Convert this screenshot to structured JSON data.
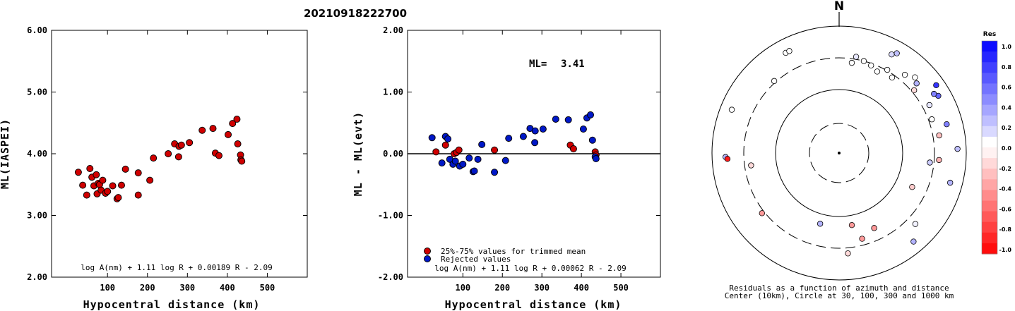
{
  "event_id": "20210918222700",
  "chart_data": [
    {
      "type": "scatter",
      "panel": "ml-vs-distance",
      "title": "20210918222700",
      "xlabel": "Hypocentral distance (km)",
      "ylabel": "ML(IASPEI)",
      "xlim": [
        -40,
        600
      ],
      "ylim": [
        2.0,
        6.0
      ],
      "x_ticks": [
        "100",
        "200",
        "300",
        "400",
        "500"
      ],
      "x_tick_values": [
        100,
        200,
        300,
        400,
        500
      ],
      "y_ticks": [
        "2.00",
        "3.00",
        "4.00",
        "5.00",
        "6.00"
      ],
      "y_tick_values": [
        2,
        3,
        4,
        5,
        6
      ],
      "formula": "log A(nm) + 1.11 log R + 0.00189 R - 2.09",
      "marker_color": "#d00000",
      "points": [
        [
          27,
          3.7
        ],
        [
          38,
          3.49
        ],
        [
          48,
          3.33
        ],
        [
          56,
          3.76
        ],
        [
          61,
          3.62
        ],
        [
          66,
          3.48
        ],
        [
          72,
          3.66
        ],
        [
          74,
          3.35
        ],
        [
          77,
          3.52
        ],
        [
          80,
          3.5
        ],
        [
          84,
          3.41
        ],
        [
          88,
          3.57
        ],
        [
          95,
          3.36
        ],
        [
          100,
          3.39
        ],
        [
          113,
          3.48
        ],
        [
          124,
          3.27
        ],
        [
          127,
          3.29
        ],
        [
          135,
          3.49
        ],
        [
          145,
          3.75
        ],
        [
          177,
          3.69
        ],
        [
          177,
          3.33
        ],
        [
          206,
          3.57
        ],
        [
          215,
          3.93
        ],
        [
          252,
          4.0
        ],
        [
          268,
          4.16
        ],
        [
          278,
          3.95
        ],
        [
          279,
          4.12
        ],
        [
          285,
          4.14
        ],
        [
          305,
          4.18
        ],
        [
          337,
          4.38
        ],
        [
          364,
          4.41
        ],
        [
          370,
          4.01
        ],
        [
          379,
          3.97
        ],
        [
          402,
          4.31
        ],
        [
          413,
          4.49
        ],
        [
          424,
          4.56
        ],
        [
          426,
          4.16
        ],
        [
          433,
          3.98
        ],
        [
          434,
          3.9
        ],
        [
          436,
          3.88
        ]
      ]
    },
    {
      "type": "scatter",
      "panel": "residual-vs-distance",
      "xlabel": "Hypocentral distance (km)",
      "ylabel": "ML - ML(evt)",
      "xlim": [
        -40,
        600
      ],
      "ylim": [
        -2.0,
        2.0
      ],
      "x_ticks": [
        "100",
        "200",
        "300",
        "400",
        "500"
      ],
      "x_tick_values": [
        100,
        200,
        300,
        400,
        500
      ],
      "y_ticks": [
        "-2.00",
        "-1.00",
        "0.00",
        "1.00",
        "2.00"
      ],
      "y_tick_values": [
        -2,
        -1,
        0,
        1,
        2
      ],
      "ml_label": "ML=",
      "ml_value": "3.41",
      "formula": "log A(nm) + 1.11 log R + 0.00062 R - 2.09",
      "zero_line": true,
      "legend": [
        {
          "label": "25%-75% values for trimmed mean",
          "color": "#d00000"
        },
        {
          "label": "Rejected values",
          "color": "#0018c8"
        }
      ],
      "series": [
        {
          "name": "25%-75% values for trimmed mean",
          "color": "#d00000",
          "points": [
            [
              32,
              0.03
            ],
            [
              56,
              0.14
            ],
            [
              78,
              0.0
            ],
            [
              84,
              0.02
            ],
            [
              90,
              0.06
            ],
            [
              180,
              0.06
            ],
            [
              372,
              0.14
            ],
            [
              380,
              0.08
            ],
            [
              435,
              0.03
            ],
            [
              437,
              -0.02
            ]
          ]
        },
        {
          "name": "Rejected values",
          "color": "#0018c8",
          "points": [
            [
              22,
              0.26
            ],
            [
              47,
              -0.15
            ],
            [
              56,
              0.28
            ],
            [
              62,
              0.24
            ],
            [
              67,
              -0.09
            ],
            [
              75,
              -0.17
            ],
            [
              81,
              -0.12
            ],
            [
              92,
              -0.2
            ],
            [
              100,
              -0.17
            ],
            [
              116,
              -0.07
            ],
            [
              126,
              -0.29
            ],
            [
              129,
              -0.28
            ],
            [
              138,
              -0.09
            ],
            [
              148,
              0.15
            ],
            [
              180,
              -0.3
            ],
            [
              208,
              -0.11
            ],
            [
              216,
              0.25
            ],
            [
              253,
              0.28
            ],
            [
              270,
              0.41
            ],
            [
              282,
              0.18
            ],
            [
              283,
              0.37
            ],
            [
              303,
              0.4
            ],
            [
              335,
              0.56
            ],
            [
              367,
              0.55
            ],
            [
              405,
              0.4
            ],
            [
              414,
              0.58
            ],
            [
              423,
              0.63
            ],
            [
              428,
              0.22
            ],
            [
              435,
              -0.05
            ],
            [
              437,
              -0.08
            ]
          ]
        }
      ]
    },
    {
      "type": "scatter",
      "panel": "azimuth-distance-residuals",
      "north_label": "N",
      "caption_line1": "Residuals as a function of azimuth and distance",
      "caption_line2": "Center (10km), Circle at 30, 100, 300 and 1000 km",
      "rings_km": [
        30,
        100,
        300,
        1000
      ],
      "colorbar_title": "Res",
      "colorbar_labels": [
        "1.0",
        "0.8",
        "0.6",
        "0.4",
        "0.2",
        "0.0",
        "-0.2",
        "-0.4",
        "-0.6",
        "-0.8",
        "-1.0"
      ],
      "stations": [
        {
          "az": 332,
          "dist_km": 600,
          "res": 0.0
        },
        {
          "az": 334,
          "dist_km": 600,
          "res": 0.0
        },
        {
          "az": 30,
          "dist_km": 640,
          "res": 0.25
        },
        {
          "az": 28,
          "dist_km": 560,
          "res": 0.15
        },
        {
          "az": 318,
          "dist_km": 320,
          "res": 0.0
        },
        {
          "az": 292,
          "dist_km": 650,
          "res": 0.0
        },
        {
          "az": 268,
          "dist_km": 600,
          "res": 0.3
        },
        {
          "az": 267,
          "dist_km": 560,
          "res": -0.9
        },
        {
          "az": 262,
          "dist_km": 240,
          "res": -0.15
        },
        {
          "az": 232,
          "dist_km": 330,
          "res": -0.4
        },
        {
          "az": 195,
          "dist_km": 140,
          "res": 0.3
        },
        {
          "az": 170,
          "dist_km": 140,
          "res": -0.4
        },
        {
          "az": 175,
          "dist_km": 370,
          "res": -0.15
        },
        {
          "az": 165,
          "dist_km": 240,
          "res": -0.4
        },
        {
          "az": 155,
          "dist_km": 195,
          "res": -0.4
        },
        {
          "az": 133,
          "dist_km": 420,
          "res": 0.05
        },
        {
          "az": 140,
          "dist_km": 650,
          "res": 0.3
        },
        {
          "az": 115,
          "dist_km": 180,
          "res": -0.2
        },
        {
          "az": 105,
          "dist_km": 630,
          "res": 0.3
        },
        {
          "az": 96,
          "dist_km": 260,
          "res": 0.2
        },
        {
          "az": 94,
          "dist_km": 360,
          "res": -0.3
        },
        {
          "az": 88,
          "dist_km": 720,
          "res": 0.25
        },
        {
          "az": 80,
          "dist_km": 380,
          "res": -0.25
        },
        {
          "az": 75,
          "dist_km": 550,
          "res": 0.5
        },
        {
          "az": 70,
          "dist_km": 340,
          "res": 0.0
        },
        {
          "az": 62,
          "dist_km": 390,
          "res": 0.1
        },
        {
          "az": 60,
          "dist_km": 620,
          "res": 0.6
        },
        {
          "az": 58,
          "dist_km": 560,
          "res": 0.5
        },
        {
          "az": 55,
          "dist_km": 720,
          "res": 0.8
        },
        {
          "az": 48,
          "dist_km": 420,
          "res": 0.3
        },
        {
          "az": 45,
          "dist_km": 470,
          "res": 0.0
        },
        {
          "az": 40,
          "dist_km": 390,
          "res": 0.0
        },
        {
          "az": 35,
          "dist_km": 270,
          "res": 0.0
        },
        {
          "az": 30,
          "dist_km": 310,
          "res": 0.0
        },
        {
          "az": 25,
          "dist_km": 250,
          "res": 0.0
        },
        {
          "az": 20,
          "dist_km": 280,
          "res": 0.0
        },
        {
          "az": 15,
          "dist_km": 300,
          "res": 0.0
        },
        {
          "az": 10,
          "dist_km": 330,
          "res": 0.1
        },
        {
          "az": 8,
          "dist_km": 260,
          "res": 0.0
        },
        {
          "az": 50,
          "dist_km": 330,
          "res": -0.15
        }
      ]
    }
  ]
}
